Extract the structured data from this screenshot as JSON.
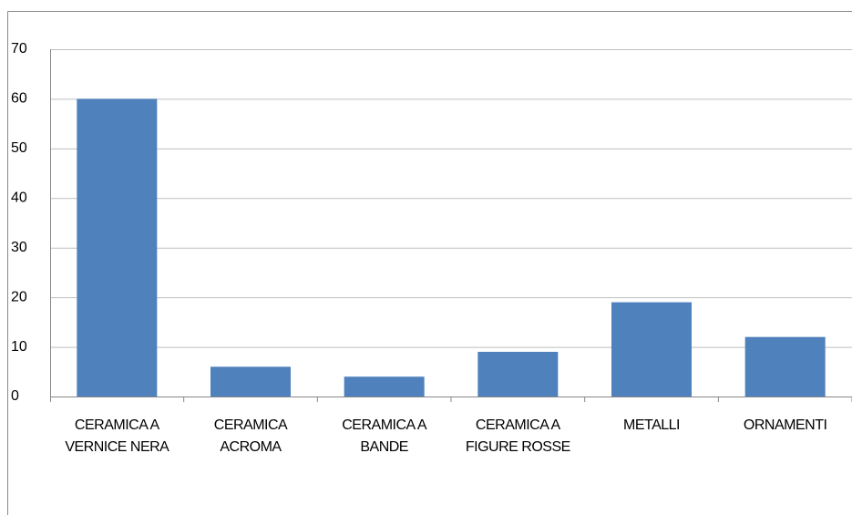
{
  "chart_data": {
    "type": "bar",
    "categories": [
      "CERAMICA A VERNICE NERA",
      "CERAMICA ACROMA",
      "CERAMICA A BANDE",
      "CERAMICA A FIGURE ROSSE",
      "METALLI",
      "ORNAMENTI"
    ],
    "values": [
      60,
      6,
      4,
      9,
      19,
      12
    ],
    "color": "#4f81bd",
    "ylim": [
      0,
      70
    ],
    "yticks": [
      0,
      10,
      20,
      30,
      40,
      50,
      60,
      70
    ],
    "grid": true
  }
}
